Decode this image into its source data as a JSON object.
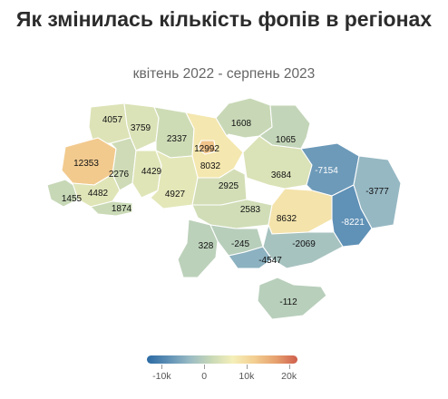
{
  "title": "Як змінилась кількість фопів в регіонах",
  "subtitle": "квітень 2022 - серпень 2023",
  "legend": {
    "min": -13500,
    "max": 22000,
    "ticks": [
      {
        "value": -10000,
        "label": "-10k"
      },
      {
        "value": 0,
        "label": "0"
      },
      {
        "value": 10000,
        "label": "10k"
      },
      {
        "value": 20000,
        "label": "20k"
      }
    ],
    "colors": [
      "#2b6aa3",
      "#5d8fb5",
      "#9bbcc4",
      "#c9d9b6",
      "#f4efb9",
      "#f3cf92",
      "#e6a06e",
      "#cf5e4c"
    ]
  },
  "map": {
    "regions": [
      {
        "name": "Волинська",
        "value": 4057,
        "label": "4057"
      },
      {
        "name": "Рівненська",
        "value": 3759,
        "label": "3759"
      },
      {
        "name": "Житомирська",
        "value": 2337,
        "label": "2337"
      },
      {
        "name": "Київ",
        "value": 12992,
        "label": "12992"
      },
      {
        "name": "Київська",
        "value": 8032,
        "label": "8032"
      },
      {
        "name": "Чернігівська",
        "value": 1608,
        "label": "1608"
      },
      {
        "name": "Сумська",
        "value": 1065,
        "label": "1065"
      },
      {
        "name": "Львівська",
        "value": 12353,
        "label": "12353"
      },
      {
        "name": "Тернопільська",
        "value": 2276,
        "label": "2276"
      },
      {
        "name": "Хмельницька",
        "value": 4429,
        "label": "4429"
      },
      {
        "name": "Вінницька",
        "value": 4927,
        "label": "4927"
      },
      {
        "name": "Черкаська",
        "value": 2925,
        "label": "2925"
      },
      {
        "name": "Полтавська",
        "value": 3684,
        "label": "3684"
      },
      {
        "name": "Харківська",
        "value": -7154,
        "label": "-7154"
      },
      {
        "name": "Луганська",
        "value": -3777,
        "label": "-3777"
      },
      {
        "name": "Закарпатська",
        "value": 1455,
        "label": "1455"
      },
      {
        "name": "Івано-Франківська",
        "value": 4482,
        "label": "4482"
      },
      {
        "name": "Чернівецька",
        "value": 1874,
        "label": "1874"
      },
      {
        "name": "Кіровоградська",
        "value": 2583,
        "label": "2583"
      },
      {
        "name": "Дніпропетровська",
        "value": 8632,
        "label": "8632"
      },
      {
        "name": "Донецька",
        "value": -8221,
        "label": "-8221"
      },
      {
        "name": "Одеська",
        "value": 328,
        "label": "328"
      },
      {
        "name": "Миколаївська",
        "value": -245,
        "label": "-245"
      },
      {
        "name": "Херсонська",
        "value": -4547,
        "label": "-4547"
      },
      {
        "name": "Запорізька",
        "value": -2069,
        "label": "-2069"
      },
      {
        "name": "АР Крим",
        "value": -112,
        "label": "-112"
      }
    ]
  }
}
